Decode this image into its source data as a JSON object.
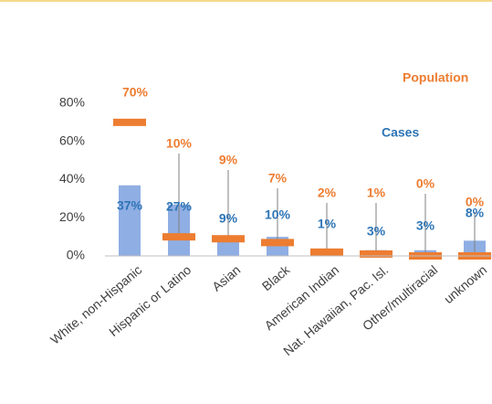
{
  "chart_data": {
    "type": "bar",
    "categories": [
      "White, non-Hispanic",
      "Hispanic or Latino",
      "Asian",
      "Black",
      "American Indian",
      "Nat. Hawaiian, Pac. Isl.",
      "Other/multiracial",
      "unknown"
    ],
    "series": [
      {
        "name": "Population",
        "color": "#ed7d31",
        "marker": "dash",
        "values": [
          70,
          10,
          9,
          7,
          2,
          1,
          0,
          0
        ],
        "value_labels": [
          "70%",
          "10%",
          "9%",
          "7%",
          "2%",
          "1%",
          "0%",
          "0%"
        ]
      },
      {
        "name": "Cases",
        "color": "#8faee3",
        "label_color": "#2e75b6",
        "values": [
          37,
          27,
          9,
          10,
          1,
          3,
          3,
          8
        ],
        "value_labels": [
          "37%",
          "27%",
          "9%",
          "10%",
          "1%",
          "3%",
          "3%",
          "8%"
        ]
      }
    ],
    "ylim": [
      0,
      80
    ],
    "yticks": [
      {
        "value": 0,
        "label": "0%"
      },
      {
        "value": 20,
        "label": "20%"
      },
      {
        "value": 40,
        "label": "40%"
      },
      {
        "value": 60,
        "label": "60%"
      },
      {
        "value": 80,
        "label": "80%"
      }
    ],
    "grid": false
  }
}
